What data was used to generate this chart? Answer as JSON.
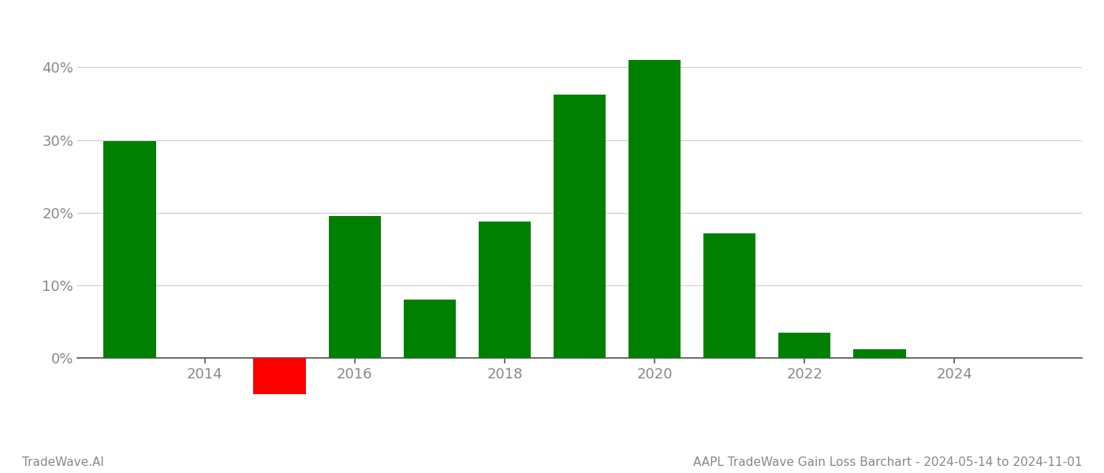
{
  "years": [
    2013,
    2015,
    2016,
    2017,
    2018,
    2019,
    2020,
    2021,
    2022,
    2023
  ],
  "values": [
    29.8,
    -5.0,
    19.5,
    8.0,
    18.8,
    36.2,
    41.0,
    17.2,
    3.5,
    1.2
  ],
  "colors": [
    "#008000",
    "#ff0000",
    "#008000",
    "#008000",
    "#008000",
    "#008000",
    "#008000",
    "#008000",
    "#008000",
    "#008000"
  ],
  "bar_width": 0.7,
  "ylim": [
    -8,
    46
  ],
  "xlim": [
    2012.3,
    2025.7
  ],
  "yticks": [
    0,
    10,
    20,
    30,
    40
  ],
  "xticks": [
    2014,
    2016,
    2018,
    2020,
    2022,
    2024
  ],
  "footer_left": "TradeWave.AI",
  "footer_right": "AAPL TradeWave Gain Loss Barchart - 2024-05-14 to 2024-11-01",
  "background_color": "#ffffff",
  "grid_color": "#cccccc",
  "tick_label_color": "#888888",
  "footer_color": "#888888",
  "tick_fontsize": 13,
  "footer_fontsize": 11
}
